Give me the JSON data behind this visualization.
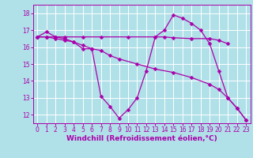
{
  "bg_color": "#b0e0e8",
  "grid_color": "#ffffff",
  "line_color": "#aa00aa",
  "marker": "D",
  "markersize": 2.5,
  "linewidth": 0.9,
  "xlim": [
    -0.5,
    23.5
  ],
  "ylim": [
    11.5,
    18.5
  ],
  "xlabel": "Windchill (Refroidissement éolien,°C)",
  "xlabel_fontsize": 6.5,
  "tick_fontsize": 5.5,
  "xticks": [
    0,
    1,
    2,
    3,
    4,
    5,
    6,
    7,
    8,
    9,
    10,
    11,
    12,
    13,
    14,
    15,
    16,
    17,
    18,
    19,
    20,
    21,
    22,
    23
  ],
  "yticks": [
    12,
    13,
    14,
    15,
    16,
    17,
    18
  ],
  "series1": [
    [
      0,
      16.6
    ],
    [
      1,
      16.9
    ],
    [
      2,
      16.6
    ],
    [
      3,
      16.5
    ],
    [
      4,
      16.3
    ],
    [
      5,
      15.9
    ],
    [
      6,
      15.9
    ],
    [
      7,
      13.1
    ],
    [
      8,
      12.5
    ],
    [
      9,
      11.8
    ],
    [
      10,
      12.3
    ],
    [
      11,
      13.0
    ],
    [
      12,
      14.6
    ],
    [
      13,
      16.6
    ],
    [
      14,
      17.0
    ],
    [
      15,
      17.9
    ],
    [
      16,
      17.7
    ],
    [
      17,
      17.4
    ],
    [
      18,
      17.0
    ],
    [
      19,
      16.2
    ],
    [
      20,
      14.6
    ],
    [
      21,
      13.0
    ],
    [
      22,
      12.4
    ],
    [
      23,
      11.7
    ]
  ],
  "series2": [
    [
      0,
      16.6
    ],
    [
      1,
      16.6
    ],
    [
      2,
      16.6
    ],
    [
      3,
      16.6
    ],
    [
      5,
      16.6
    ],
    [
      7,
      16.6
    ],
    [
      10,
      16.6
    ],
    [
      13,
      16.6
    ],
    [
      14,
      16.6
    ],
    [
      15,
      16.55
    ],
    [
      17,
      16.5
    ],
    [
      19,
      16.5
    ],
    [
      20,
      16.4
    ],
    [
      21,
      16.2
    ]
  ],
  "series3": [
    [
      0,
      16.6
    ],
    [
      1,
      16.6
    ],
    [
      2,
      16.5
    ],
    [
      3,
      16.4
    ],
    [
      4,
      16.3
    ],
    [
      5,
      16.1
    ],
    [
      6,
      15.9
    ],
    [
      7,
      15.8
    ],
    [
      8,
      15.5
    ],
    [
      9,
      15.3
    ],
    [
      11,
      15.0
    ],
    [
      13,
      14.7
    ],
    [
      15,
      14.5
    ],
    [
      17,
      14.2
    ],
    [
      19,
      13.8
    ],
    [
      20,
      13.5
    ],
    [
      21,
      13.0
    ],
    [
      22,
      12.4
    ],
    [
      23,
      11.7
    ]
  ]
}
